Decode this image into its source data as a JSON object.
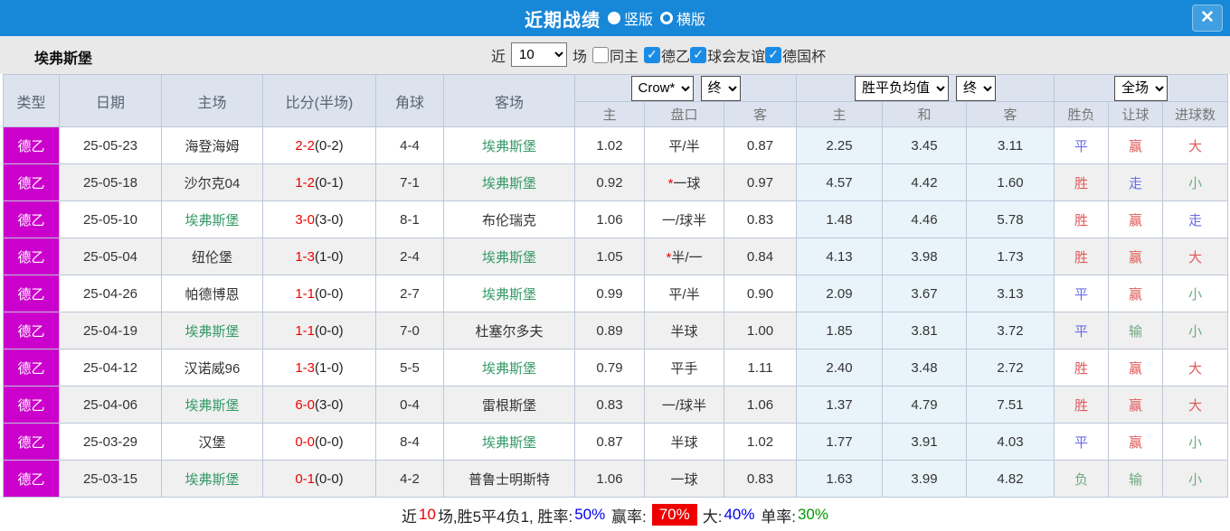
{
  "titlebar": {
    "title": "近期战绩",
    "vertical_label": "竖版",
    "horizontal_label": "横版",
    "close_glyph": "✕"
  },
  "filters": {
    "team": "埃弗斯堡",
    "recent_label": "近",
    "recent_value": "10",
    "matches_label": "场",
    "same_home_label": "同主",
    "check_glyph": "✓",
    "leagues": [
      {
        "label": "德乙",
        "checked": true
      },
      {
        "label": "球会友谊",
        "checked": true
      },
      {
        "label": "德国杯",
        "checked": true
      }
    ]
  },
  "table": {
    "headers": {
      "type": "类型",
      "date": "日期",
      "home": "主场",
      "score": "比分(半场)",
      "corners": "角球",
      "away": "客场"
    },
    "dropdowns": {
      "asian_company": "Crow*",
      "asian_period": "终",
      "euro_company": "胜平负均值",
      "euro_period": "终",
      "scope": "全场"
    },
    "subheaders": {
      "asian_home": "主",
      "asian_handicap": "盘口",
      "asian_away": "客",
      "euro_home": "主",
      "euro_draw": "和",
      "euro_away": "客",
      "result": "胜负",
      "spread": "让球",
      "goals": "进球数"
    },
    "rows": [
      {
        "league": "德乙",
        "date": "25-05-23",
        "home": "海登海姆",
        "home_team": false,
        "score": "2-2",
        "half": "(0-2)",
        "corners": "4-4",
        "away": "埃弗斯堡",
        "away_team": true,
        "ah_home": "1.02",
        "star": false,
        "handicap": "平/半",
        "ah_away": "0.87",
        "eu_home": "2.25",
        "eu_draw": "3.45",
        "eu_away": "3.11",
        "result": "平",
        "spread": "赢",
        "goals": "大"
      },
      {
        "league": "德乙",
        "date": "25-05-18",
        "home": "沙尔克04",
        "home_team": false,
        "score": "1-2",
        "half": "(0-1)",
        "corners": "7-1",
        "away": "埃弗斯堡",
        "away_team": true,
        "ah_home": "0.92",
        "star": true,
        "handicap": "一球",
        "ah_away": "0.97",
        "eu_home": "4.57",
        "eu_draw": "4.42",
        "eu_away": "1.60",
        "result": "胜",
        "spread": "走",
        "goals": "小"
      },
      {
        "league": "德乙",
        "date": "25-05-10",
        "home": "埃弗斯堡",
        "home_team": true,
        "score": "3-0",
        "half": "(3-0)",
        "corners": "8-1",
        "away": "布伦瑞克",
        "away_team": false,
        "ah_home": "1.06",
        "star": false,
        "handicap": "一/球半",
        "ah_away": "0.83",
        "eu_home": "1.48",
        "eu_draw": "4.46",
        "eu_away": "5.78",
        "result": "胜",
        "spread": "赢",
        "goals": "走"
      },
      {
        "league": "德乙",
        "date": "25-05-04",
        "home": "纽伦堡",
        "home_team": false,
        "score": "1-3",
        "half": "(1-0)",
        "corners": "2-4",
        "away": "埃弗斯堡",
        "away_team": true,
        "ah_home": "1.05",
        "star": true,
        "handicap": "半/一",
        "ah_away": "0.84",
        "eu_home": "4.13",
        "eu_draw": "3.98",
        "eu_away": "1.73",
        "result": "胜",
        "spread": "赢",
        "goals": "大"
      },
      {
        "league": "德乙",
        "date": "25-04-26",
        "home": "帕德博恩",
        "home_team": false,
        "score": "1-1",
        "half": "(0-0)",
        "corners": "2-7",
        "away": "埃弗斯堡",
        "away_team": true,
        "ah_home": "0.99",
        "star": false,
        "handicap": "平/半",
        "ah_away": "0.90",
        "eu_home": "2.09",
        "eu_draw": "3.67",
        "eu_away": "3.13",
        "result": "平",
        "spread": "赢",
        "goals": "小"
      },
      {
        "league": "德乙",
        "date": "25-04-19",
        "home": "埃弗斯堡",
        "home_team": true,
        "score": "1-1",
        "half": "(0-0)",
        "corners": "7-0",
        "away": "杜塞尔多夫",
        "away_team": false,
        "ah_home": "0.89",
        "star": false,
        "handicap": "半球",
        "ah_away": "1.00",
        "eu_home": "1.85",
        "eu_draw": "3.81",
        "eu_away": "3.72",
        "result": "平",
        "spread": "输",
        "goals": "小"
      },
      {
        "league": "德乙",
        "date": "25-04-12",
        "home": "汉诺威96",
        "home_team": false,
        "score": "1-3",
        "half": "(1-0)",
        "corners": "5-5",
        "away": "埃弗斯堡",
        "away_team": true,
        "ah_home": "0.79",
        "star": false,
        "handicap": "平手",
        "ah_away": "1.11",
        "eu_home": "2.40",
        "eu_draw": "3.48",
        "eu_away": "2.72",
        "result": "胜",
        "spread": "赢",
        "goals": "大"
      },
      {
        "league": "德乙",
        "date": "25-04-06",
        "home": "埃弗斯堡",
        "home_team": true,
        "score": "6-0",
        "half": "(3-0)",
        "corners": "0-4",
        "away": "雷根斯堡",
        "away_team": false,
        "ah_home": "0.83",
        "star": false,
        "handicap": "一/球半",
        "ah_away": "1.06",
        "eu_home": "1.37",
        "eu_draw": "4.79",
        "eu_away": "7.51",
        "result": "胜",
        "spread": "赢",
        "goals": "大"
      },
      {
        "league": "德乙",
        "date": "25-03-29",
        "home": "汉堡",
        "home_team": false,
        "score": "0-0",
        "half": "(0-0)",
        "corners": "8-4",
        "away": "埃弗斯堡",
        "away_team": true,
        "ah_home": "0.87",
        "star": false,
        "handicap": "半球",
        "ah_away": "1.02",
        "eu_home": "1.77",
        "eu_draw": "3.91",
        "eu_away": "4.03",
        "result": "平",
        "spread": "赢",
        "goals": "小"
      },
      {
        "league": "德乙",
        "date": "25-03-15",
        "home": "埃弗斯堡",
        "home_team": true,
        "score": "0-1",
        "half": "(0-0)",
        "corners": "4-2",
        "away": "普鲁士明斯特",
        "away_team": false,
        "ah_home": "1.06",
        "star": false,
        "handicap": "一球",
        "ah_away": "0.83",
        "eu_home": "1.63",
        "eu_draw": "3.99",
        "eu_away": "4.82",
        "result": "负",
        "spread": "输",
        "goals": "小"
      }
    ]
  },
  "summary": {
    "part1": "近",
    "count": "10",
    "part2": "场,胜5平4负1, 胜率:",
    "win_rate": "50%",
    "part3": " 赢率:",
    "odds_rate": "70%",
    "part4": "大:",
    "big_rate": "40%",
    "part5": " 单率:",
    "single_rate": "30%"
  },
  "colors": {
    "accent_blue": "#1787d8",
    "league_badge": "#cc00cc",
    "team_green": "#339966",
    "score_red": "#ee0000",
    "result_map": {
      "胜": "red",
      "平": "blue",
      "负": "green",
      "赢": "red",
      "走": "blue",
      "输": "green",
      "大": "red",
      "小": "green"
    },
    "result_colors": {
      "red": "#e05a5a",
      "blue": "#6a6ae8",
      "green": "#6faa7f"
    }
  }
}
